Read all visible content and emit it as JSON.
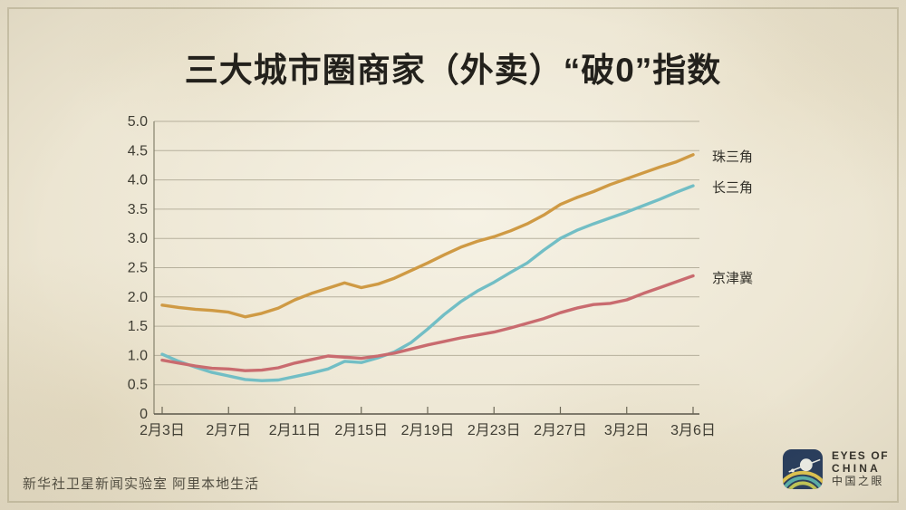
{
  "page": {
    "background": "#ebe4d0",
    "frame_color": "#b0aa8c"
  },
  "title": "三大城市圈商家（外卖）“破0”指数",
  "chart_data": {
    "type": "line",
    "title": "三大城市圈商家（外卖）“破0”指数",
    "xlabel": "",
    "ylabel": "",
    "grid": "horizontal",
    "legend_position": "right-of-line-ends",
    "x": [
      "2月3日",
      "2月4日",
      "2月5日",
      "2月6日",
      "2月7日",
      "2月8日",
      "2月9日",
      "2月10日",
      "2月11日",
      "2月12日",
      "2月13日",
      "2月14日",
      "2月15日",
      "2月16日",
      "2月17日",
      "2月18日",
      "2月19日",
      "2月20日",
      "2月21日",
      "2月22日",
      "2月23日",
      "2月24日",
      "2月25日",
      "2月26日",
      "2月27日",
      "2月28日",
      "2月29日",
      "3月1日",
      "3月2日",
      "3月3日",
      "3月4日",
      "3月5日",
      "3月6日"
    ],
    "x_ticks": [
      {
        "index": 0,
        "label": "2月3日"
      },
      {
        "index": 4,
        "label": "2月7日"
      },
      {
        "index": 8,
        "label": "2月11日"
      },
      {
        "index": 12,
        "label": "2月15日"
      },
      {
        "index": 16,
        "label": "2月19日"
      },
      {
        "index": 20,
        "label": "2月23日"
      },
      {
        "index": 24,
        "label": "2月27日"
      },
      {
        "index": 28,
        "label": "3月2日"
      },
      {
        "index": 32,
        "label": "3月6日"
      }
    ],
    "y_axis": {
      "min": 0,
      "max": 5,
      "ticks": [
        {
          "v": 5.0,
          "label": "5.0"
        },
        {
          "v": 4.5,
          "label": "4.5"
        },
        {
          "v": 4.0,
          "label": "4.0"
        },
        {
          "v": 3.5,
          "label": "3.5"
        },
        {
          "v": 3.0,
          "label": "3.0"
        },
        {
          "v": 2.5,
          "label": "2.5"
        },
        {
          "v": 2.0,
          "label": "2.0"
        },
        {
          "v": 1.5,
          "label": "1.5"
        },
        {
          "v": 1.0,
          "label": "1.0"
        },
        {
          "v": 0.5,
          "label": "0.5"
        },
        {
          "v": 0,
          "label": "0"
        }
      ]
    },
    "series": [
      {
        "name": "珠三角",
        "color": "#cf9a44",
        "values": [
          1.86,
          1.82,
          1.79,
          1.77,
          1.74,
          1.66,
          1.72,
          1.81,
          1.95,
          2.06,
          2.15,
          2.24,
          2.16,
          2.22,
          2.32,
          2.45,
          2.58,
          2.72,
          2.85,
          2.95,
          3.03,
          3.13,
          3.25,
          3.4,
          3.58,
          3.7,
          3.8,
          3.92,
          4.02,
          4.12,
          4.22,
          4.31,
          4.43
        ]
      },
      {
        "name": "长三角",
        "color": "#72bec5",
        "values": [
          1.02,
          0.9,
          0.8,
          0.71,
          0.65,
          0.59,
          0.57,
          0.58,
          0.64,
          0.7,
          0.77,
          0.9,
          0.88,
          0.96,
          1.06,
          1.22,
          1.45,
          1.7,
          1.92,
          2.1,
          2.25,
          2.42,
          2.58,
          2.8,
          3.0,
          3.14,
          3.25,
          3.35,
          3.45,
          3.56,
          3.67,
          3.79,
          3.9
        ]
      },
      {
        "name": "京津冀",
        "color": "#c96b6f",
        "values": [
          0.92,
          0.87,
          0.82,
          0.78,
          0.77,
          0.74,
          0.75,
          0.79,
          0.87,
          0.93,
          0.99,
          0.97,
          0.95,
          0.99,
          1.04,
          1.11,
          1.18,
          1.24,
          1.3,
          1.35,
          1.4,
          1.47,
          1.55,
          1.63,
          1.73,
          1.81,
          1.87,
          1.89,
          1.95,
          2.06,
          2.16,
          2.26,
          2.36
        ]
      }
    ]
  },
  "footer": {
    "credit": "新华社卫星新闻实验室  阿里本地生活"
  },
  "logo": {
    "line1": "EYES OF",
    "line2": "CHINA",
    "line3": "中国之眼",
    "icon": "satellite-planet-rainbow-icon",
    "navy": "#23395c"
  }
}
